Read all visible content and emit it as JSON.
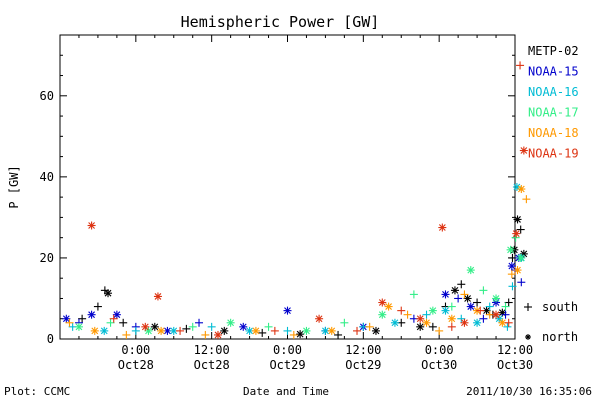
{
  "chart_data": {
    "type": "scatter",
    "title": "Hemispheric Power [GW]",
    "xlabel": "Date and Time",
    "ylabel": "P [GW]",
    "ylim": [
      0,
      75
    ],
    "y_ticks": [
      0,
      20,
      40,
      60
    ],
    "x_range_hours": [
      -12,
      60
    ],
    "x_ticks": [
      {
        "hour": 0,
        "time": "0:00",
        "date": "Oct28"
      },
      {
        "hour": 12,
        "time": "12:00",
        "date": "Oct28"
      },
      {
        "hour": 24,
        "time": "0:00",
        "date": "Oct29"
      },
      {
        "hour": 36,
        "time": "12:00",
        "date": "Oct29"
      },
      {
        "hour": 48,
        "time": "0:00",
        "date": "Oct30"
      },
      {
        "hour": 60,
        "time": "12:00",
        "date": "Oct30"
      }
    ],
    "grid": false,
    "legend_position": "right",
    "markers": {
      "south_label": "south",
      "north_label": "north"
    },
    "series": [
      {
        "name": "METP-02",
        "color": "#000000",
        "points": [
          [
            -8.5,
            5,
            "s"
          ],
          [
            -6,
            8,
            "s"
          ],
          [
            -4.9,
            12,
            "s"
          ],
          [
            -4.4,
            11.3,
            "n"
          ],
          [
            -2,
            4,
            "s"
          ],
          [
            3,
            3,
            "n"
          ],
          [
            8,
            2.5,
            "s"
          ],
          [
            14,
            2,
            "n"
          ],
          [
            20,
            1.5,
            "s"
          ],
          [
            26,
            1.2,
            "n"
          ],
          [
            32,
            1,
            "s"
          ],
          [
            38,
            2,
            "n"
          ],
          [
            42,
            4,
            "s"
          ],
          [
            45,
            3,
            "n"
          ],
          [
            47,
            3,
            "s"
          ],
          [
            49,
            8,
            "s"
          ],
          [
            50.5,
            12,
            "n"
          ],
          [
            51.5,
            13.5,
            "s"
          ],
          [
            52.5,
            10,
            "n"
          ],
          [
            54,
            9,
            "s"
          ],
          [
            55.5,
            7,
            "n"
          ],
          [
            56.5,
            6,
            "s"
          ],
          [
            58,
            6.5,
            "n"
          ],
          [
            59,
            9,
            "s"
          ],
          [
            59.6,
            20,
            "s"
          ],
          [
            59.9,
            22,
            "n"
          ],
          [
            60.4,
            29.5,
            "n"
          ],
          [
            60.9,
            27,
            "s"
          ],
          [
            61.4,
            21,
            "n"
          ]
        ]
      },
      {
        "name": "NOAA-15",
        "color": "#0000cc",
        "points": [
          [
            -11,
            5,
            "n"
          ],
          [
            -9,
            4,
            "s"
          ],
          [
            -7,
            6,
            "n"
          ],
          [
            -3,
            6,
            "n"
          ],
          [
            0,
            3,
            "s"
          ],
          [
            5,
            2,
            "n"
          ],
          [
            10,
            4,
            "s"
          ],
          [
            17,
            3,
            "n"
          ],
          [
            24,
            7,
            "n"
          ],
          [
            30,
            2,
            "s"
          ],
          [
            36,
            3,
            "n"
          ],
          [
            44,
            5,
            "s"
          ],
          [
            49,
            11,
            "n"
          ],
          [
            51,
            10,
            "s"
          ],
          [
            53,
            8,
            "n"
          ],
          [
            55,
            5,
            "s"
          ],
          [
            57,
            9,
            "n"
          ],
          [
            58.5,
            6,
            "s"
          ],
          [
            59.5,
            18,
            "n"
          ],
          [
            60,
            17,
            "s"
          ],
          [
            60.6,
            20,
            "n"
          ],
          [
            61,
            14,
            "s"
          ]
        ]
      },
      {
        "name": "NOAA-16",
        "color": "#00bcd4",
        "points": [
          [
            -10,
            3,
            "s"
          ],
          [
            -5,
            2,
            "n"
          ],
          [
            0,
            2,
            "s"
          ],
          [
            6,
            2,
            "n"
          ],
          [
            12,
            3,
            "s"
          ],
          [
            18,
            2,
            "n"
          ],
          [
            24,
            2,
            "s"
          ],
          [
            30,
            2,
            "n"
          ],
          [
            36,
            3,
            "s"
          ],
          [
            41,
            4,
            "n"
          ],
          [
            46,
            6,
            "s"
          ],
          [
            49,
            7,
            "n"
          ],
          [
            51.5,
            5,
            "s"
          ],
          [
            54,
            4,
            "n"
          ],
          [
            56,
            8,
            "s"
          ],
          [
            57.5,
            5,
            "n"
          ],
          [
            58.8,
            3,
            "s"
          ],
          [
            59.6,
            13,
            "s"
          ],
          [
            60.3,
            37.5,
            "n"
          ],
          [
            61,
            20,
            "n"
          ]
        ]
      },
      {
        "name": "NOAA-17",
        "color": "#33ee88",
        "points": [
          [
            -9,
            3,
            "n"
          ],
          [
            -4,
            4,
            "s"
          ],
          [
            2,
            2,
            "n"
          ],
          [
            9,
            3,
            "s"
          ],
          [
            15,
            4,
            "n"
          ],
          [
            21,
            3,
            "s"
          ],
          [
            27,
            2,
            "n"
          ],
          [
            33,
            4,
            "s"
          ],
          [
            39,
            6,
            "n"
          ],
          [
            44,
            11,
            "s"
          ],
          [
            47,
            7,
            "n"
          ],
          [
            50,
            8,
            "s"
          ],
          [
            53,
            17,
            "n"
          ],
          [
            55,
            12,
            "s"
          ],
          [
            57,
            10,
            "n"
          ],
          [
            58.5,
            8,
            "s"
          ],
          [
            59.3,
            22,
            "n"
          ],
          [
            60.1,
            25,
            "s"
          ],
          [
            60.9,
            20,
            "n"
          ]
        ]
      },
      {
        "name": "NOAA-18",
        "color": "#ff9900",
        "points": [
          [
            -10.5,
            4,
            "s"
          ],
          [
            -6.5,
            2,
            "n"
          ],
          [
            -1.5,
            1,
            "s"
          ],
          [
            4,
            2,
            "n"
          ],
          [
            11,
            1,
            "s"
          ],
          [
            19,
            2,
            "n"
          ],
          [
            25,
            1,
            "s"
          ],
          [
            31,
            2,
            "n"
          ],
          [
            37,
            3,
            "s"
          ],
          [
            40,
            8,
            "n"
          ],
          [
            43,
            6,
            "s"
          ],
          [
            46,
            4,
            "n"
          ],
          [
            48,
            2,
            "s"
          ],
          [
            50,
            5,
            "n"
          ],
          [
            52,
            11,
            "s"
          ],
          [
            54,
            7,
            "n"
          ],
          [
            56,
            6,
            "s"
          ],
          [
            58,
            4,
            "n"
          ],
          [
            59.5,
            16,
            "s"
          ],
          [
            60.4,
            17,
            "n"
          ],
          [
            61,
            37,
            "n"
          ],
          [
            61.8,
            34.5,
            "s"
          ]
        ]
      },
      {
        "name": "NOAA-19",
        "color": "#dd3311",
        "points": [
          [
            -7,
            28,
            "n"
          ],
          [
            -3.5,
            5,
            "s"
          ],
          [
            1.5,
            3,
            "n"
          ],
          [
            3.5,
            10.5,
            "n"
          ],
          [
            7,
            2,
            "s"
          ],
          [
            13,
            1,
            "n"
          ],
          [
            22,
            2,
            "s"
          ],
          [
            29,
            5,
            "n"
          ],
          [
            35,
            2,
            "s"
          ],
          [
            39,
            9,
            "n"
          ],
          [
            42,
            7,
            "s"
          ],
          [
            45,
            5,
            "n"
          ],
          [
            48.5,
            27.5,
            "n"
          ],
          [
            50,
            3,
            "s"
          ],
          [
            52,
            4,
            "n"
          ],
          [
            54.5,
            7,
            "s"
          ],
          [
            57,
            6,
            "n"
          ],
          [
            59,
            4,
            "s"
          ],
          [
            60.2,
            26,
            "n"
          ],
          [
            60.8,
            67.5,
            "s"
          ],
          [
            61.4,
            46.5,
            "n"
          ]
        ]
      }
    ]
  },
  "footer": {
    "left": "Plot: CCMC",
    "center": "Date and Time",
    "right": "2011/10/30 16:35:06"
  }
}
